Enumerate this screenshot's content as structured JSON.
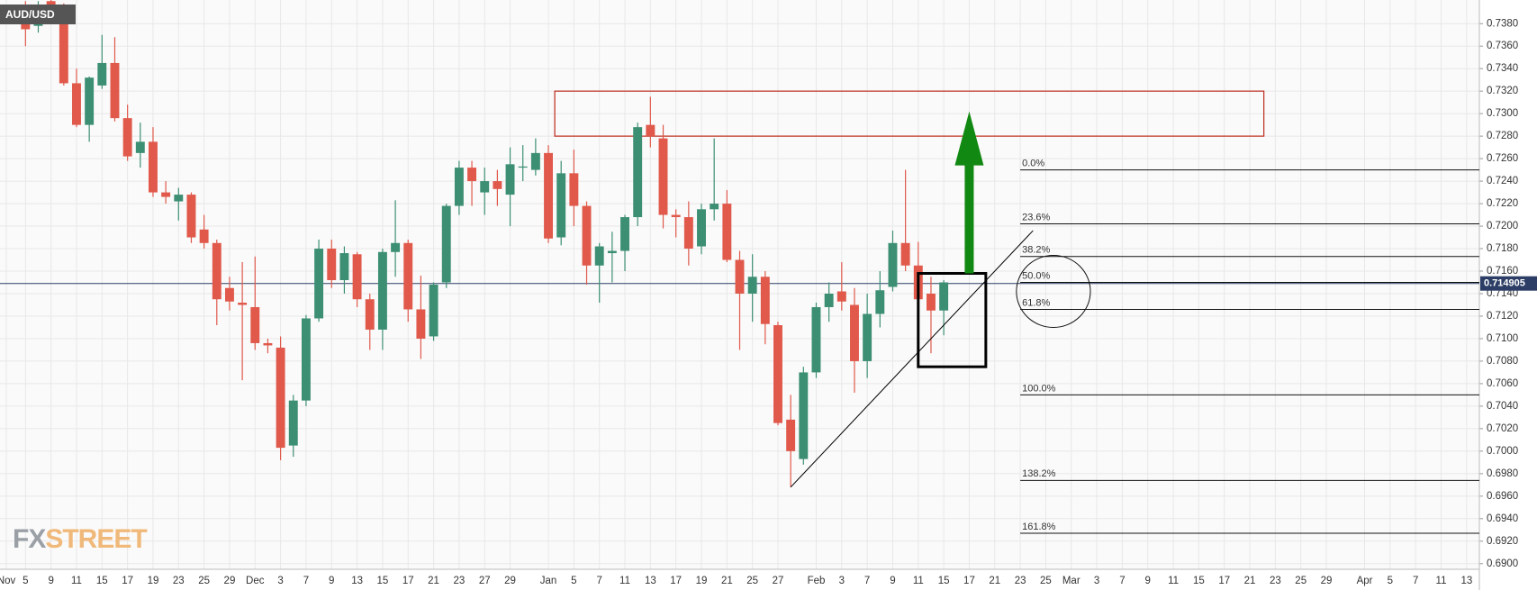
{
  "chart_data": {
    "type": "candlestick",
    "title": "AUD/USD",
    "watermark": [
      "FX",
      "STREET"
    ],
    "up_color": "#3d8f74",
    "down_color": "#e0594b",
    "grid": true,
    "x": [
      0,
      1,
      2,
      3,
      4,
      5,
      6,
      7,
      8,
      9,
      10,
      11,
      12,
      13,
      14,
      15,
      16,
      17,
      18,
      19,
      20,
      21,
      22,
      23,
      24,
      25,
      26,
      27,
      28,
      29,
      30,
      31,
      32,
      33,
      34,
      35,
      36,
      37,
      38,
      39,
      40,
      41,
      42,
      43,
      44,
      45,
      46,
      47,
      48,
      49,
      50,
      51,
      52,
      53,
      54,
      55,
      56,
      57,
      58,
      59,
      60,
      61,
      62,
      63,
      64,
      65,
      66,
      67,
      68,
      69,
      70,
      71,
      72
    ],
    "open": [
      0.7392,
      0.7378,
      0.74,
      0.739,
      0.7327,
      0.729,
      0.7325,
      0.7345,
      0.7296,
      0.7265,
      0.7275,
      0.723,
      0.7222,
      0.7228,
      0.7197,
      0.7185,
      0.7145,
      0.7132,
      0.7128,
      0.7096,
      0.7092,
      0.7005,
      0.7045,
      0.7118,
      0.718,
      0.7152,
      0.7175,
      0.7135,
      0.7108,
      0.7177,
      0.7185,
      0.7126,
      0.7102,
      0.715,
      0.7218,
      0.7252,
      0.723,
      0.724,
      0.7228,
      0.7252,
      0.725,
      0.7265,
      0.719,
      0.7247,
      0.7218,
      0.7165,
      0.7176,
      0.7178,
      0.7208,
      0.729,
      0.7278,
      0.721,
      0.7208,
      0.7182,
      0.7215,
      0.722,
      0.717,
      0.714,
      0.7155,
      0.7112,
      0.7028,
      0.6993,
      0.707,
      0.7128,
      0.7142,
      0.713,
      0.708,
      0.7122,
      0.7146,
      0.7185,
      0.7165,
      0.714,
      0.7125
    ],
    "high": [
      0.74,
      0.74,
      0.7402,
      0.7398,
      0.734,
      0.7333,
      0.737,
      0.7368,
      0.7308,
      0.7292,
      0.7288,
      0.724,
      0.7234,
      0.723,
      0.721,
      0.7188,
      0.7155,
      0.7168,
      0.7173,
      0.71,
      0.7102,
      0.705,
      0.7121,
      0.7188,
      0.7188,
      0.7182,
      0.7177,
      0.714,
      0.718,
      0.7223,
      0.7188,
      0.7156,
      0.715,
      0.722,
      0.7258,
      0.7258,
      0.7252,
      0.725,
      0.727,
      0.7272,
      0.7278,
      0.7272,
      0.7258,
      0.7268,
      0.7222,
      0.7185,
      0.7195,
      0.721,
      0.7292,
      0.7315,
      0.729,
      0.7215,
      0.7222,
      0.722,
      0.7278,
      0.7232,
      0.7178,
      0.7175,
      0.716,
      0.7115,
      0.705,
      0.7075,
      0.7132,
      0.715,
      0.7168,
      0.7145,
      0.714,
      0.716,
      0.7196,
      0.725,
      0.7186,
      0.7155,
      0.7152
    ],
    "low": [
      0.736,
      0.7372,
      0.738,
      0.7325,
      0.7288,
      0.7275,
      0.7322,
      0.7293,
      0.7258,
      0.7252,
      0.7226,
      0.722,
      0.7205,
      0.7185,
      0.718,
      0.7112,
      0.7125,
      0.7063,
      0.709,
      0.7087,
      0.6992,
      0.6995,
      0.704,
      0.7115,
      0.7145,
      0.714,
      0.7128,
      0.709,
      0.709,
      0.7155,
      0.7115,
      0.7082,
      0.7098,
      0.7145,
      0.721,
      0.7218,
      0.721,
      0.7218,
      0.72,
      0.724,
      0.7245,
      0.7185,
      0.7183,
      0.72,
      0.7148,
      0.7132,
      0.715,
      0.716,
      0.72,
      0.727,
      0.7198,
      0.719,
      0.7165,
      0.7175,
      0.7205,
      0.7168,
      0.709,
      0.7115,
      0.7095,
      0.7023,
      0.6968,
      0.6988,
      0.7065,
      0.7115,
      0.7125,
      0.7052,
      0.7065,
      0.711,
      0.7142,
      0.716,
      0.7135,
      0.7087,
      0.7103
    ],
    "close": [
      0.7375,
      0.7395,
      0.7385,
      0.7327,
      0.729,
      0.7332,
      0.7345,
      0.7296,
      0.7262,
      0.7275,
      0.723,
      0.7226,
      0.7228,
      0.719,
      0.7185,
      0.7135,
      0.7133,
      0.713,
      0.7096,
      0.7094,
      0.7003,
      0.7045,
      0.7118,
      0.718,
      0.7152,
      0.7176,
      0.7135,
      0.7108,
      0.7177,
      0.7185,
      0.7126,
      0.71,
      0.7148,
      0.7218,
      0.7252,
      0.724,
      0.724,
      0.7233,
      0.7255,
      0.7253,
      0.7265,
      0.7189,
      0.7247,
      0.7218,
      0.7165,
      0.7182,
      0.7178,
      0.7208,
      0.7288,
      0.728,
      0.721,
      0.7208,
      0.718,
      0.7215,
      0.722,
      0.717,
      0.714,
      0.7155,
      0.7113,
      0.7025,
      0.7,
      0.707,
      0.7128,
      0.714,
      0.7133,
      0.708,
      0.7122,
      0.7143,
      0.7185,
      0.7165,
      0.7135,
      0.7125,
      0.715
    ],
    "xlim": [
      -2,
      114
    ],
    "ylim": [
      0.6895,
      0.7401
    ],
    "xticks": [
      {
        "value": -1.5,
        "label": "Nov"
      },
      {
        "value": 0,
        "label": "5"
      },
      {
        "value": 2,
        "label": "9"
      },
      {
        "value": 4,
        "label": "11"
      },
      {
        "value": 6,
        "label": "15"
      },
      {
        "value": 8,
        "label": "17"
      },
      {
        "value": 10,
        "label": "19"
      },
      {
        "value": 12,
        "label": "23"
      },
      {
        "value": 14,
        "label": "25"
      },
      {
        "value": 16,
        "label": "29"
      },
      {
        "value": 18,
        "label": "Dec"
      },
      {
        "value": 20,
        "label": "3"
      },
      {
        "value": 22,
        "label": "7"
      },
      {
        "value": 24,
        "label": "9"
      },
      {
        "value": 26,
        "label": "13"
      },
      {
        "value": 28,
        "label": "15"
      },
      {
        "value": 30,
        "label": "17"
      },
      {
        "value": 32,
        "label": "21"
      },
      {
        "value": 34,
        "label": "23"
      },
      {
        "value": 36,
        "label": "27"
      },
      {
        "value": 38,
        "label": "29"
      },
      {
        "value": 41,
        "label": "Jan"
      },
      {
        "value": 43,
        "label": "5"
      },
      {
        "value": 45,
        "label": "7"
      },
      {
        "value": 47,
        "label": "11"
      },
      {
        "value": 49,
        "label": "13"
      },
      {
        "value": 51,
        "label": "17"
      },
      {
        "value": 53,
        "label": "19"
      },
      {
        "value": 55,
        "label": "21"
      },
      {
        "value": 57,
        "label": "25"
      },
      {
        "value": 59,
        "label": "27"
      },
      {
        "value": 62,
        "label": "Feb"
      },
      {
        "value": 64,
        "label": "3"
      },
      {
        "value": 66,
        "label": "7"
      },
      {
        "value": 68,
        "label": "9"
      },
      {
        "value": 70,
        "label": "11"
      },
      {
        "value": 72,
        "label": "15"
      },
      {
        "value": 74,
        "label": "17"
      },
      {
        "value": 76,
        "label": "21"
      },
      {
        "value": 78,
        "label": "23"
      },
      {
        "value": 80,
        "label": "25"
      },
      {
        "value": 82,
        "label": "Mar"
      },
      {
        "value": 84,
        "label": "3"
      },
      {
        "value": 86,
        "label": "7"
      },
      {
        "value": 88,
        "label": "9"
      },
      {
        "value": 90,
        "label": "11"
      },
      {
        "value": 92,
        "label": "15"
      },
      {
        "value": 94,
        "label": "17"
      },
      {
        "value": 96,
        "label": "21"
      },
      {
        "value": 98,
        "label": "23"
      },
      {
        "value": 100,
        "label": "25"
      },
      {
        "value": 102,
        "label": "29"
      },
      {
        "value": 105,
        "label": "Apr"
      },
      {
        "value": 107,
        "label": "5"
      },
      {
        "value": 109,
        "label": "7"
      },
      {
        "value": 111,
        "label": "11"
      },
      {
        "value": 113,
        "label": "13"
      }
    ],
    "yticks": [
      {
        "value": 0.69,
        "label": "0.6900"
      },
      {
        "value": 0.692,
        "label": "0.6920"
      },
      {
        "value": 0.694,
        "label": "0.6940"
      },
      {
        "value": 0.696,
        "label": "0.6960"
      },
      {
        "value": 0.698,
        "label": "0.6980"
      },
      {
        "value": 0.7,
        "label": "0.7000"
      },
      {
        "value": 0.702,
        "label": "0.7020"
      },
      {
        "value": 0.704,
        "label": "0.7040"
      },
      {
        "value": 0.706,
        "label": "0.7060"
      },
      {
        "value": 0.708,
        "label": "0.7080"
      },
      {
        "value": 0.71,
        "label": "0.7100"
      },
      {
        "value": 0.712,
        "label": "0.7120"
      },
      {
        "value": 0.714,
        "label": "0.7140"
      },
      {
        "value": 0.716,
        "label": "0.7160"
      },
      {
        "value": 0.718,
        "label": "0.7180"
      },
      {
        "value": 0.72,
        "label": "0.7200"
      },
      {
        "value": 0.722,
        "label": "0.7220"
      },
      {
        "value": 0.724,
        "label": "0.7240"
      },
      {
        "value": 0.726,
        "label": "0.7260"
      },
      {
        "value": 0.728,
        "label": "0.7280"
      },
      {
        "value": 0.73,
        "label": "0.7300"
      },
      {
        "value": 0.732,
        "label": "0.7320"
      },
      {
        "value": 0.734,
        "label": "0.7340"
      },
      {
        "value": 0.736,
        "label": "0.7360"
      },
      {
        "value": 0.738,
        "label": "0.7380"
      }
    ],
    "last_price": 0.714905,
    "last_price_color": "#2c3e66",
    "resistance_zone": {
      "x": [
        41.5,
        97.1
      ],
      "y": [
        0.728,
        0.732
      ],
      "color": "#c0392b"
    },
    "arrow": {
      "x": 74,
      "y": [
        0.7158,
        0.7302
      ],
      "color": "#118811"
    },
    "focus_box": {
      "x": [
        70,
        75.3
      ],
      "y": [
        0.7075,
        0.7158
      ],
      "color": "#000000"
    },
    "trendline": {
      "x": [
        60,
        79
      ],
      "y": [
        0.6968,
        0.7196
      ],
      "color": "#000000"
    },
    "ellipse": {
      "x": 80.6,
      "y": 0.7142,
      "rx": 2.9,
      "ry": 0.0032
    },
    "fib_levels": {
      "x": 78,
      "levels": [
        {
          "label": "0.0%",
          "value": 0.725
        },
        {
          "label": "23.6%",
          "value": 0.7202
        },
        {
          "label": "38.2%",
          "value": 0.7173
        },
        {
          "label": "50.0%",
          "value": 0.715
        },
        {
          "label": "61.8%",
          "value": 0.7126
        },
        {
          "label": "100.0%",
          "value": 0.705
        },
        {
          "label": "138.2%",
          "value": 0.6974
        },
        {
          "label": "161.8%",
          "value": 0.6927
        }
      ]
    }
  }
}
